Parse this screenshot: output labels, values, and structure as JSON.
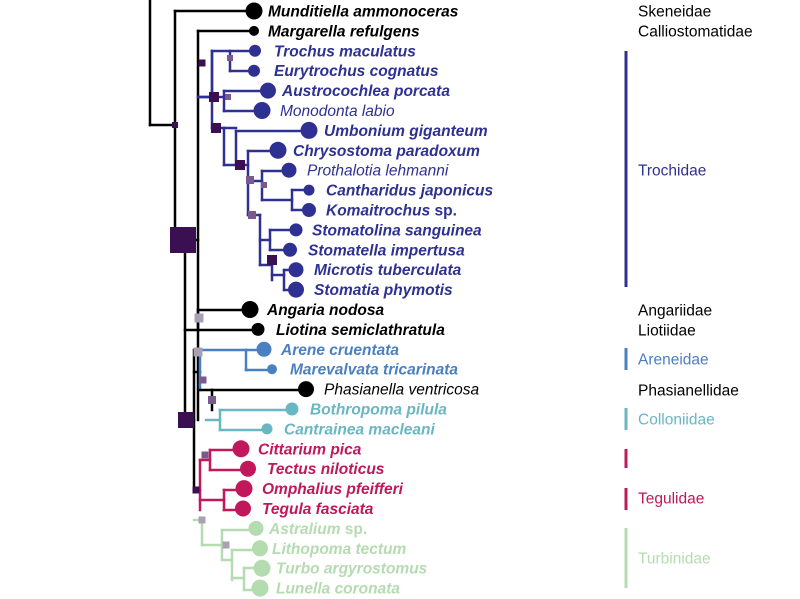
{
  "colors": {
    "black": "#000000",
    "trochidae": "#2e3192",
    "areneidae": "#4a7fc1",
    "colloniidae": "#6ab6c2",
    "tegulidae": "#c0185b",
    "turbinidae": "#b5dcb0",
    "node_dark": "#3b1052",
    "node_mid": "#7a5a8c",
    "node_light": "#a9a0b3"
  },
  "families": [
    {
      "name": "Skeneidae",
      "color": "black"
    },
    {
      "name": "Calliostomatidae",
      "color": "black"
    },
    {
      "name": "Trochidae",
      "color": "trochidae"
    },
    {
      "name": "Angariidae",
      "color": "black"
    },
    {
      "name": "Liotiidae",
      "color": "black"
    },
    {
      "name": "Areneidae",
      "color": "areneidae"
    },
    {
      "name": "Phasianellidae",
      "color": "black"
    },
    {
      "name": "Colloniidae",
      "color": "colloniidae"
    },
    {
      "name": "",
      "color": "tegulidae"
    },
    {
      "name": "Tegulidae",
      "color": "tegulidae"
    },
    {
      "name": "Turbinidae",
      "color": "turbinidae"
    }
  ],
  "taxa": [
    {
      "genus": "Munditiella ammonoceras",
      "suffix": "",
      "bold": true,
      "color": "black"
    },
    {
      "genus": "Margarella refulgens",
      "suffix": "",
      "bold": true,
      "color": "black"
    },
    {
      "genus": "Trochus maculatus",
      "suffix": "",
      "bold": true,
      "color": "trochidae"
    },
    {
      "genus": "Eurytrochus cognatus",
      "suffix": "",
      "bold": true,
      "color": "trochidae"
    },
    {
      "genus": "Austrocochlea porcata",
      "suffix": "",
      "bold": true,
      "color": "trochidae"
    },
    {
      "genus": "Monodonta labio",
      "suffix": "",
      "bold": false,
      "color": "trochidae"
    },
    {
      "genus": "Umbonium giganteum",
      "suffix": "",
      "bold": true,
      "color": "trochidae"
    },
    {
      "genus": "Chrysostoma paradoxum",
      "suffix": "",
      "bold": true,
      "color": "trochidae"
    },
    {
      "genus": "Prothalotia lehmanni",
      "suffix": "",
      "bold": false,
      "color": "trochidae"
    },
    {
      "genus": "Cantharidus japonicus",
      "suffix": "",
      "bold": true,
      "color": "trochidae"
    },
    {
      "genus": "Komaitrochus",
      "suffix": " sp.",
      "bold": true,
      "color": "trochidae"
    },
    {
      "genus": "Stomatolina sanguinea",
      "suffix": "",
      "bold": true,
      "color": "trochidae"
    },
    {
      "genus": "Stomatella impertusa",
      "suffix": "",
      "bold": true,
      "color": "trochidae"
    },
    {
      "genus": "Microtis tuberculata",
      "suffix": "",
      "bold": true,
      "color": "trochidae"
    },
    {
      "genus": "Stomatia phymotis",
      "suffix": "",
      "bold": true,
      "color": "trochidae"
    },
    {
      "genus": "Angaria nodosa",
      "suffix": "",
      "bold": true,
      "color": "black"
    },
    {
      "genus": "Liotina semiclathratula",
      "suffix": "",
      "bold": true,
      "color": "black"
    },
    {
      "genus": "Arene cruentata",
      "suffix": "",
      "bold": true,
      "color": "areneidae"
    },
    {
      "genus": "Marevalvata tricarinata",
      "suffix": "",
      "bold": true,
      "color": "areneidae"
    },
    {
      "genus": "Phasianella ventricosa",
      "suffix": "",
      "bold": false,
      "color": "black"
    },
    {
      "genus": "Bothropoma pilula",
      "suffix": "",
      "bold": true,
      "color": "colloniidae"
    },
    {
      "genus": "Cantrainea macleani",
      "suffix": "",
      "bold": true,
      "color": "colloniidae"
    },
    {
      "genus": "Cittarium pica",
      "suffix": "",
      "bold": true,
      "color": "tegulidae"
    },
    {
      "genus": "Tectus niloticus",
      "suffix": "",
      "bold": true,
      "color": "tegulidae"
    },
    {
      "genus": "Omphalius pfeifferi",
      "suffix": "",
      "bold": true,
      "color": "tegulidae"
    },
    {
      "genus": "Tegula fasciata",
      "suffix": "",
      "bold": true,
      "color": "tegulidae"
    },
    {
      "genus": "Astralium",
      "suffix": " sp.",
      "bold": true,
      "color": "turbinidae"
    },
    {
      "genus": "Lithopoma tectum",
      "suffix": "",
      "bold": true,
      "color": "turbinidae"
    },
    {
      "genus": "Turbo argyrostomus",
      "suffix": "",
      "bold": true,
      "color": "turbinidae"
    },
    {
      "genus": "Lunella coronata",
      "suffix": "",
      "bold": true,
      "color": "turbinidae"
    }
  ]
}
